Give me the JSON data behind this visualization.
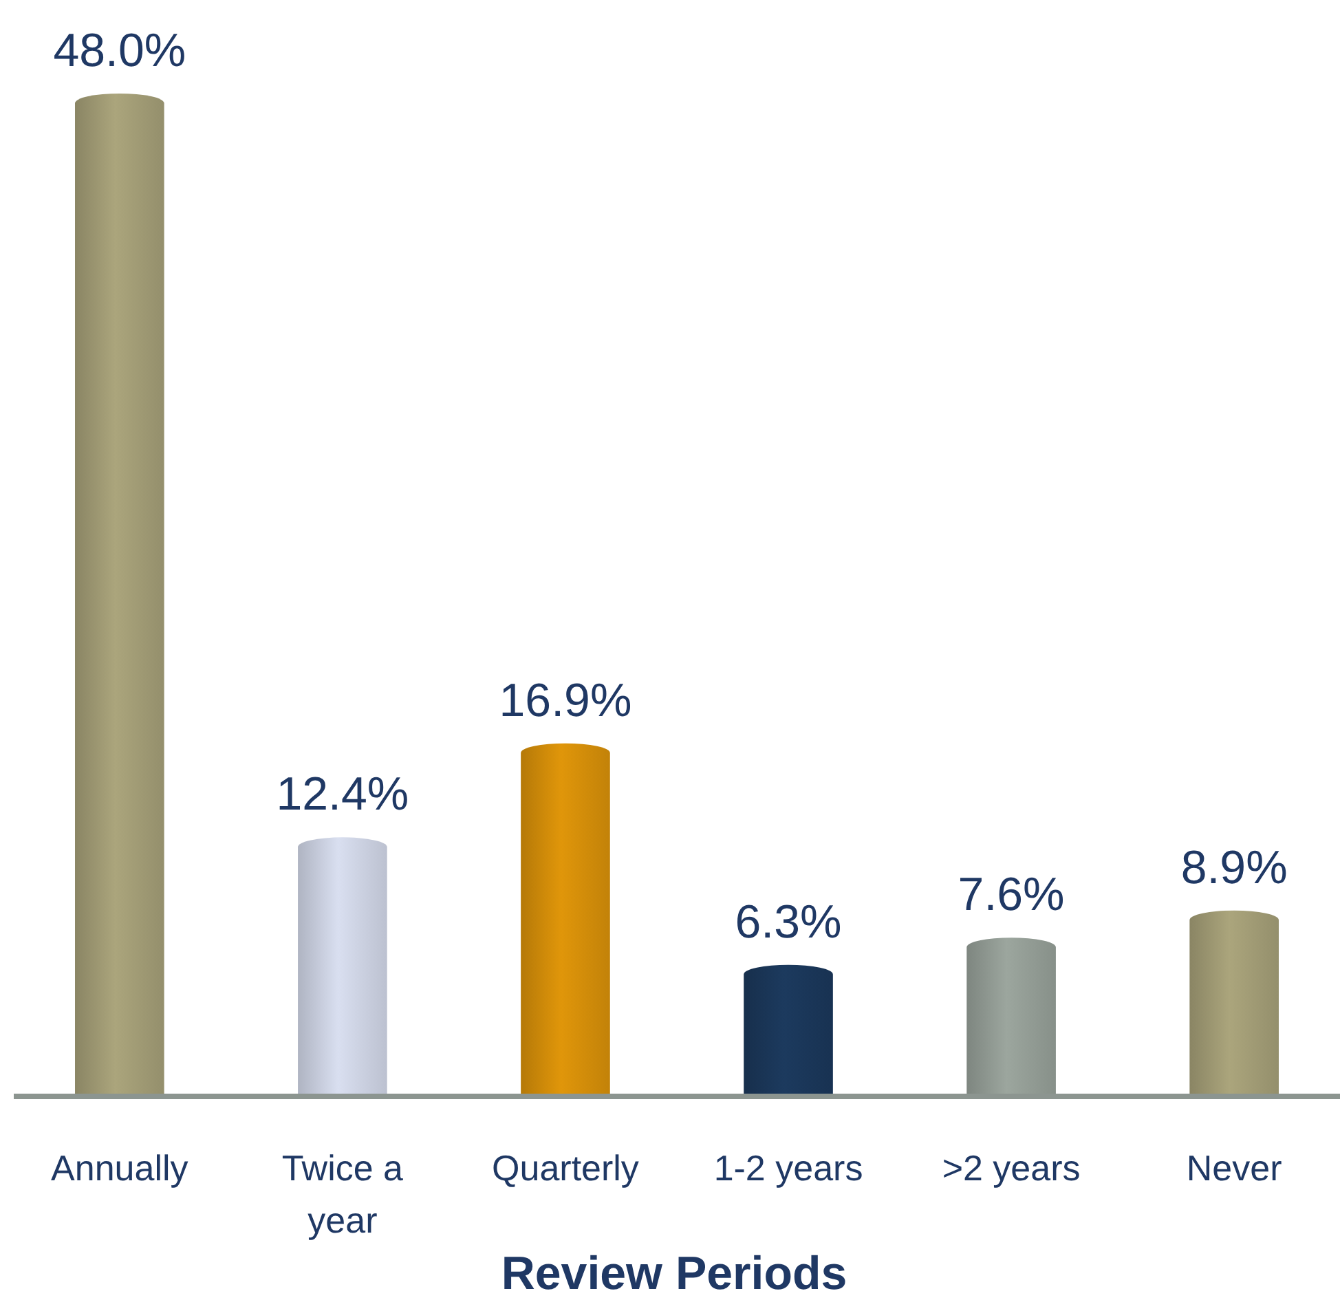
{
  "chart_data": {
    "type": "bar",
    "xlabel": "Review Periods",
    "categories": [
      "Annually",
      "Twice a year",
      "Quarterly",
      "1-2 years",
      ">2 years",
      "Never"
    ],
    "values": [
      48.0,
      12.4,
      16.9,
      6.3,
      7.6,
      8.9
    ],
    "value_labels": [
      "48.0%",
      "12.4%",
      "16.9%",
      "6.3%",
      "7.6%",
      "8.9%"
    ],
    "colors": [
      "#aba57c",
      "#d9dff0",
      "#e0960a",
      "#1c3a5e",
      "#9ca69e",
      "#aba57c"
    ]
  }
}
